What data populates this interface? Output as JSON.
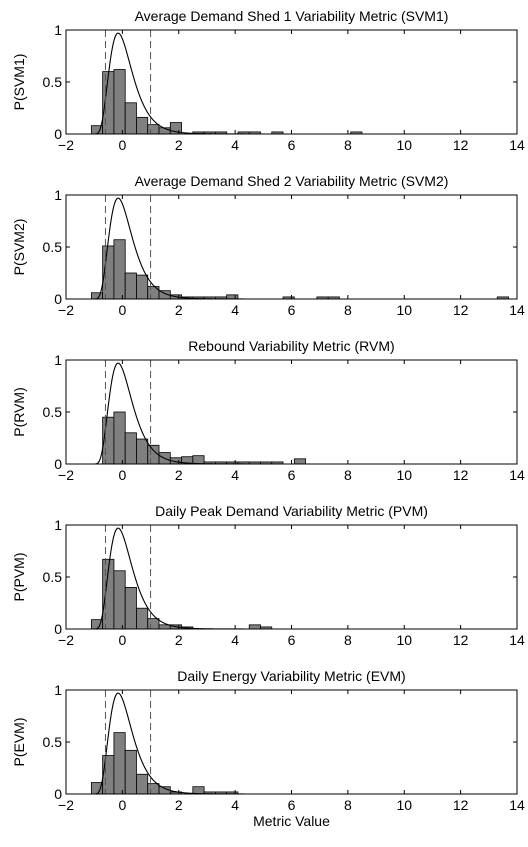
{
  "chart_data": [
    {
      "type": "bar",
      "title": "Average Demand Shed 1 Variability Metric (SVM1)",
      "xlabel": "",
      "ylabel": "P(SVM1)",
      "xlim": [
        -2,
        14
      ],
      "ylim": [
        0,
        1
      ],
      "xticks": [
        -2,
        0,
        2,
        4,
        6,
        8,
        10,
        12,
        14
      ],
      "yticks": [
        0,
        0.5,
        1
      ],
      "bin_width": 0.4,
      "bins": [
        {
          "center": -0.9,
          "value": 0.08
        },
        {
          "center": -0.5,
          "value": 0.6
        },
        {
          "center": -0.1,
          "value": 0.62
        },
        {
          "center": 0.3,
          "value": 0.3
        },
        {
          "center": 0.7,
          "value": 0.16
        },
        {
          "center": 1.1,
          "value": 0.09
        },
        {
          "center": 1.5,
          "value": 0.06
        },
        {
          "center": 1.9,
          "value": 0.11
        },
        {
          "center": 2.7,
          "value": 0.02
        },
        {
          "center": 3.1,
          "value": 0.02
        },
        {
          "center": 3.5,
          "value": 0.02
        },
        {
          "center": 4.3,
          "value": 0.02
        },
        {
          "center": 4.7,
          "value": 0.02
        },
        {
          "center": 5.5,
          "value": 0.02
        },
        {
          "center": 8.3,
          "value": 0.02
        }
      ],
      "fit_curve": {
        "type": "lognormal",
        "peak": 0.97,
        "peak_x": -0.15
      },
      "dashed_lines": [
        -0.6,
        1.0
      ],
      "grid": false,
      "legend": "none"
    },
    {
      "type": "bar",
      "title": "Average Demand Shed 2 Variability Metric (SVM2)",
      "xlabel": "",
      "ylabel": "P(SVM2)",
      "xlim": [
        -2,
        14
      ],
      "ylim": [
        0,
        1
      ],
      "xticks": [
        -2,
        0,
        2,
        4,
        6,
        8,
        10,
        12,
        14
      ],
      "yticks": [
        0,
        0.5,
        1
      ],
      "bin_width": 0.4,
      "bins": [
        {
          "center": -0.9,
          "value": 0.06
        },
        {
          "center": -0.5,
          "value": 0.51
        },
        {
          "center": -0.1,
          "value": 0.57
        },
        {
          "center": 0.3,
          "value": 0.25
        },
        {
          "center": 0.7,
          "value": 0.23
        },
        {
          "center": 1.1,
          "value": 0.12
        },
        {
          "center": 1.5,
          "value": 0.08
        },
        {
          "center": 1.9,
          "value": 0.04
        },
        {
          "center": 2.3,
          "value": 0.02
        },
        {
          "center": 2.7,
          "value": 0.02
        },
        {
          "center": 3.1,
          "value": 0.02
        },
        {
          "center": 3.5,
          "value": 0.02
        },
        {
          "center": 3.9,
          "value": 0.04
        },
        {
          "center": 5.9,
          "value": 0.02
        },
        {
          "center": 7.1,
          "value": 0.02
        },
        {
          "center": 7.5,
          "value": 0.02
        },
        {
          "center": 13.5,
          "value": 0.02
        }
      ],
      "fit_curve": {
        "type": "lognormal",
        "peak": 0.97,
        "peak_x": -0.15
      },
      "dashed_lines": [
        -0.6,
        1.0
      ],
      "grid": false,
      "legend": "none"
    },
    {
      "type": "bar",
      "title": "Rebound Variability Metric (RVM)",
      "xlabel": "",
      "ylabel": "P(RVM)",
      "xlim": [
        -2,
        14
      ],
      "ylim": [
        0,
        1
      ],
      "xticks": [
        -2,
        0,
        2,
        4,
        6,
        8,
        10,
        12,
        14
      ],
      "yticks": [
        0,
        0.5,
        1
      ],
      "bin_width": 0.4,
      "bins": [
        {
          "center": -0.5,
          "value": 0.45
        },
        {
          "center": -0.1,
          "value": 0.5
        },
        {
          "center": 0.3,
          "value": 0.3
        },
        {
          "center": 0.7,
          "value": 0.24
        },
        {
          "center": 1.1,
          "value": 0.18
        },
        {
          "center": 1.5,
          "value": 0.11
        },
        {
          "center": 1.9,
          "value": 0.06
        },
        {
          "center": 2.3,
          "value": 0.07
        },
        {
          "center": 2.7,
          "value": 0.08
        },
        {
          "center": 3.1,
          "value": 0.02
        },
        {
          "center": 3.5,
          "value": 0.02
        },
        {
          "center": 3.9,
          "value": 0.02
        },
        {
          "center": 4.3,
          "value": 0.02
        },
        {
          "center": 4.7,
          "value": 0.02
        },
        {
          "center": 5.1,
          "value": 0.02
        },
        {
          "center": 5.5,
          "value": 0.02
        },
        {
          "center": 6.3,
          "value": 0.05
        }
      ],
      "fit_curve": {
        "type": "lognormal",
        "peak": 0.97,
        "peak_x": -0.15
      },
      "dashed_lines": [
        -0.6,
        1.0
      ],
      "grid": false,
      "legend": "none"
    },
    {
      "type": "bar",
      "title": "Daily Peak Demand Variability Metric (PVM)",
      "xlabel": "",
      "ylabel": "P(PVM)",
      "xlim": [
        -2,
        14
      ],
      "ylim": [
        0,
        1
      ],
      "xticks": [
        -2,
        0,
        2,
        4,
        6,
        8,
        10,
        12,
        14
      ],
      "yticks": [
        0,
        0.5,
        1
      ],
      "bin_width": 0.4,
      "bins": [
        {
          "center": -0.9,
          "value": 0.09
        },
        {
          "center": -0.5,
          "value": 0.67
        },
        {
          "center": -0.1,
          "value": 0.56
        },
        {
          "center": 0.3,
          "value": 0.4
        },
        {
          "center": 0.7,
          "value": 0.2
        },
        {
          "center": 1.1,
          "value": 0.1
        },
        {
          "center": 1.5,
          "value": 0.04
        },
        {
          "center": 1.9,
          "value": 0.04
        },
        {
          "center": 2.3,
          "value": 0.02
        },
        {
          "center": 4.7,
          "value": 0.04
        },
        {
          "center": 5.1,
          "value": 0.02
        }
      ],
      "fit_curve": {
        "type": "lognormal",
        "peak": 0.97,
        "peak_x": -0.15
      },
      "dashed_lines": [
        -0.6,
        1.0
      ],
      "grid": false,
      "legend": "none"
    },
    {
      "type": "bar",
      "title": "Daily Energy Variability Metric (EVM)",
      "xlabel": "Metric Value",
      "ylabel": "P(EVM)",
      "xlim": [
        -2,
        14
      ],
      "ylim": [
        0,
        1
      ],
      "xticks": [
        -2,
        0,
        2,
        4,
        6,
        8,
        10,
        12,
        14
      ],
      "yticks": [
        0,
        0.5,
        1
      ],
      "bin_width": 0.4,
      "bins": [
        {
          "center": -0.9,
          "value": 0.11
        },
        {
          "center": -0.5,
          "value": 0.37
        },
        {
          "center": -0.1,
          "value": 0.59
        },
        {
          "center": 0.3,
          "value": 0.42
        },
        {
          "center": 0.7,
          "value": 0.19
        },
        {
          "center": 1.1,
          "value": 0.1
        },
        {
          "center": 1.5,
          "value": 0.07
        },
        {
          "center": 1.9,
          "value": 0.02
        },
        {
          "center": 2.7,
          "value": 0.07
        },
        {
          "center": 3.1,
          "value": 0.02
        },
        {
          "center": 3.5,
          "value": 0.02
        },
        {
          "center": 3.9,
          "value": 0.02
        }
      ],
      "fit_curve": {
        "type": "lognormal",
        "peak": 0.97,
        "peak_x": -0.15
      },
      "dashed_lines": [
        -0.6,
        1.0
      ],
      "grid": false,
      "legend": "none"
    }
  ],
  "colors": {
    "bar_fill": "#808080",
    "bar_stroke": "#000000",
    "curve": "#000000",
    "dashed": "#555555",
    "axis": "#000000"
  }
}
